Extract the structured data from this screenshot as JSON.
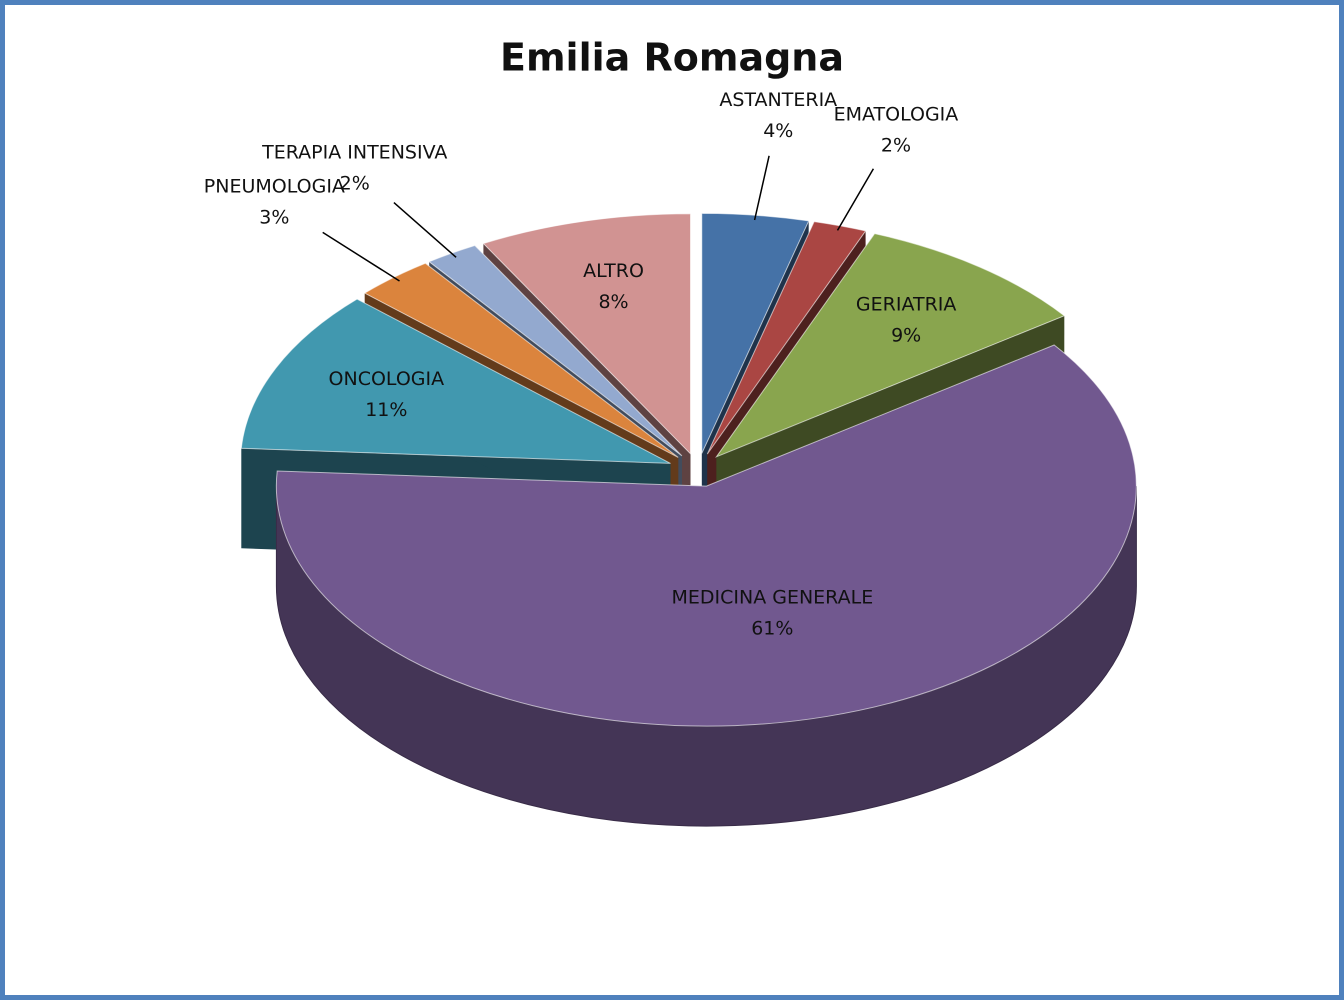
{
  "chart_data": {
    "type": "pie3d",
    "title": "Emilia Romagna",
    "categories": [
      "ASTANTERIA",
      "EMATOLOGIA",
      "GERIATRIA",
      "MEDICINA GENERALE",
      "ONCOLOGIA",
      "PNEUMOLOGIA",
      "TERAPIA INTENSIVA",
      "ALTRO"
    ],
    "values": [
      4,
      2,
      9,
      61,
      11,
      3,
      2,
      8
    ],
    "value_labels": [
      "4%",
      "2%",
      "9%",
      "61%",
      "11%",
      "3%",
      "2%",
      "8%"
    ],
    "colors": [
      "#4572a7",
      "#aa4643",
      "#89a54e",
      "#71588f",
      "#4198af",
      "#db843d",
      "#93a9cf",
      "#d19392"
    ]
  }
}
